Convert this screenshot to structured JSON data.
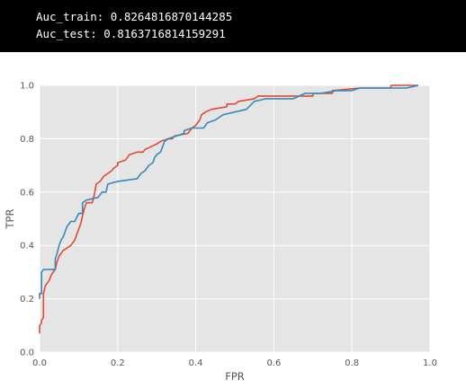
{
  "console": {
    "lines": [
      "Auc_train: 0.8264816870144285",
      "Auc_test: 0.8163716814159291"
    ]
  },
  "chart_data": {
    "type": "line",
    "title": "",
    "xlabel": "FPR",
    "ylabel": "TPR",
    "xlim": [
      0,
      1
    ],
    "ylim": [
      0,
      1
    ],
    "x_ticks": [
      "0.0",
      "0.2",
      "0.4",
      "0.6",
      "0.8",
      "1.0"
    ],
    "y_ticks": [
      "0.0",
      "0.2",
      "0.4",
      "0.6",
      "0.8",
      "1.0"
    ],
    "grid": true,
    "background": "#e5e5e5",
    "series": [
      {
        "color": "#e24a33",
        "points": [
          [
            0.0,
            0.07
          ],
          [
            0.0,
            0.1
          ],
          [
            0.005,
            0.11
          ],
          [
            0.005,
            0.12
          ],
          [
            0.01,
            0.13
          ],
          [
            0.01,
            0.22
          ],
          [
            0.015,
            0.25
          ],
          [
            0.02,
            0.26
          ],
          [
            0.025,
            0.27
          ],
          [
            0.03,
            0.29
          ],
          [
            0.035,
            0.3
          ],
          [
            0.04,
            0.31
          ],
          [
            0.045,
            0.34
          ],
          [
            0.05,
            0.36
          ],
          [
            0.055,
            0.37
          ],
          [
            0.06,
            0.38
          ],
          [
            0.07,
            0.39
          ],
          [
            0.08,
            0.4
          ],
          [
            0.09,
            0.42
          ],
          [
            0.095,
            0.44
          ],
          [
            0.1,
            0.46
          ],
          [
            0.105,
            0.48
          ],
          [
            0.11,
            0.51
          ],
          [
            0.115,
            0.54
          ],
          [
            0.12,
            0.56
          ],
          [
            0.135,
            0.56
          ],
          [
            0.14,
            0.59
          ],
          [
            0.145,
            0.63
          ],
          [
            0.155,
            0.64
          ],
          [
            0.16,
            0.65
          ],
          [
            0.165,
            0.66
          ],
          [
            0.175,
            0.67
          ],
          [
            0.185,
            0.68
          ],
          [
            0.19,
            0.69
          ],
          [
            0.2,
            0.7
          ],
          [
            0.2,
            0.71
          ],
          [
            0.22,
            0.72
          ],
          [
            0.225,
            0.73
          ],
          [
            0.23,
            0.74
          ],
          [
            0.25,
            0.75
          ],
          [
            0.265,
            0.75
          ],
          [
            0.27,
            0.76
          ],
          [
            0.3,
            0.78
          ],
          [
            0.31,
            0.79
          ],
          [
            0.33,
            0.8
          ],
          [
            0.34,
            0.8
          ],
          [
            0.345,
            0.81
          ],
          [
            0.38,
            0.82
          ],
          [
            0.39,
            0.84
          ],
          [
            0.4,
            0.85
          ],
          [
            0.41,
            0.87
          ],
          [
            0.415,
            0.89
          ],
          [
            0.425,
            0.9
          ],
          [
            0.44,
            0.91
          ],
          [
            0.48,
            0.92
          ],
          [
            0.48,
            0.93
          ],
          [
            0.5,
            0.93
          ],
          [
            0.51,
            0.94
          ],
          [
            0.55,
            0.95
          ],
          [
            0.56,
            0.96
          ],
          [
            0.7,
            0.96
          ],
          [
            0.7,
            0.97
          ],
          [
            0.75,
            0.97
          ],
          [
            0.75,
            0.98
          ],
          [
            0.82,
            0.99
          ],
          [
            0.9,
            0.99
          ],
          [
            0.9,
            1.0
          ],
          [
            0.97,
            1.0
          ]
        ]
      },
      {
        "color": "#348abd",
        "points": [
          [
            0.0,
            0.2
          ],
          [
            0.0,
            0.22
          ],
          [
            0.005,
            0.22
          ],
          [
            0.005,
            0.3
          ],
          [
            0.01,
            0.31
          ],
          [
            0.04,
            0.31
          ],
          [
            0.04,
            0.35
          ],
          [
            0.045,
            0.37
          ],
          [
            0.05,
            0.4
          ],
          [
            0.055,
            0.42
          ],
          [
            0.06,
            0.43
          ],
          [
            0.065,
            0.45
          ],
          [
            0.07,
            0.47
          ],
          [
            0.08,
            0.49
          ],
          [
            0.09,
            0.49
          ],
          [
            0.1,
            0.52
          ],
          [
            0.11,
            0.52
          ],
          [
            0.11,
            0.56
          ],
          [
            0.12,
            0.57
          ],
          [
            0.15,
            0.58
          ],
          [
            0.16,
            0.6
          ],
          [
            0.17,
            0.6
          ],
          [
            0.175,
            0.63
          ],
          [
            0.2,
            0.64
          ],
          [
            0.25,
            0.65
          ],
          [
            0.26,
            0.67
          ],
          [
            0.27,
            0.68
          ],
          [
            0.28,
            0.7
          ],
          [
            0.29,
            0.71
          ],
          [
            0.295,
            0.73
          ],
          [
            0.3,
            0.74
          ],
          [
            0.31,
            0.75
          ],
          [
            0.315,
            0.77
          ],
          [
            0.32,
            0.79
          ],
          [
            0.33,
            0.8
          ],
          [
            0.35,
            0.81
          ],
          [
            0.37,
            0.82
          ],
          [
            0.37,
            0.83
          ],
          [
            0.39,
            0.84
          ],
          [
            0.42,
            0.84
          ],
          [
            0.43,
            0.86
          ],
          [
            0.45,
            0.87
          ],
          [
            0.47,
            0.89
          ],
          [
            0.5,
            0.9
          ],
          [
            0.53,
            0.91
          ],
          [
            0.55,
            0.94
          ],
          [
            0.58,
            0.95
          ],
          [
            0.65,
            0.95
          ],
          [
            0.68,
            0.97
          ],
          [
            0.72,
            0.97
          ],
          [
            0.76,
            0.98
          ],
          [
            0.8,
            0.98
          ],
          [
            0.82,
            0.99
          ],
          [
            0.94,
            0.99
          ],
          [
            0.97,
            1.0
          ]
        ]
      }
    ]
  }
}
